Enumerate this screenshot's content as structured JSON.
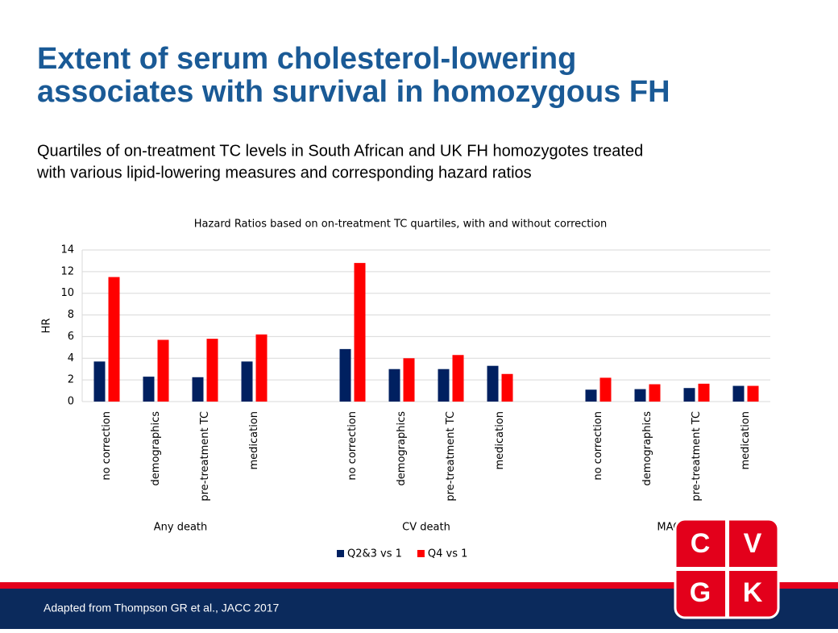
{
  "header": {
    "title": [
      "Extent of serum cholesterol-lowering",
      "associates with survival in homozygous FH"
    ],
    "subtitle": [
      "Quartiles of on-treatment TC levels in South African and UK FH homozygotes treated",
      "with various lipid-lowering measures and corresponding hazard ratios"
    ]
  },
  "chart_data": {
    "type": "bar",
    "title": "Hazard Ratios based on on-treatment TC quartiles, with and without correction",
    "y_label": "HR",
    "groups": [
      "Any death",
      "CV death",
      "MACE"
    ],
    "categories": [
      "no correction",
      "demographics",
      "pre-treatment TC",
      "medication",
      "no correction",
      "demographics",
      "pre-treatment TC",
      "medication",
      "no correction",
      "demographics",
      "pre-treatment TC",
      "medication"
    ],
    "series": [
      {
        "name": "Q2&3 vs 1",
        "color": "#002060",
        "values": [
          3.7,
          2.3,
          2.25,
          3.7,
          4.85,
          3.0,
          3.0,
          3.3,
          1.1,
          1.15,
          1.25,
          1.45
        ]
      },
      {
        "name": "Q4 vs 1",
        "color": "#ff0000",
        "values": [
          11.5,
          5.7,
          5.8,
          6.2,
          12.8,
          4.0,
          4.3,
          2.55,
          2.2,
          1.6,
          1.65,
          1.45
        ]
      }
    ],
    "ylim": [
      0,
      14
    ],
    "yticks": [
      0,
      2,
      4,
      6,
      8,
      10,
      12,
      14
    ],
    "grid": true,
    "legend": "bottom"
  },
  "footer": "Adapted from Thompson GR et al., JACC 2017",
  "logo": [
    "C",
    "V",
    "G",
    "K"
  ]
}
